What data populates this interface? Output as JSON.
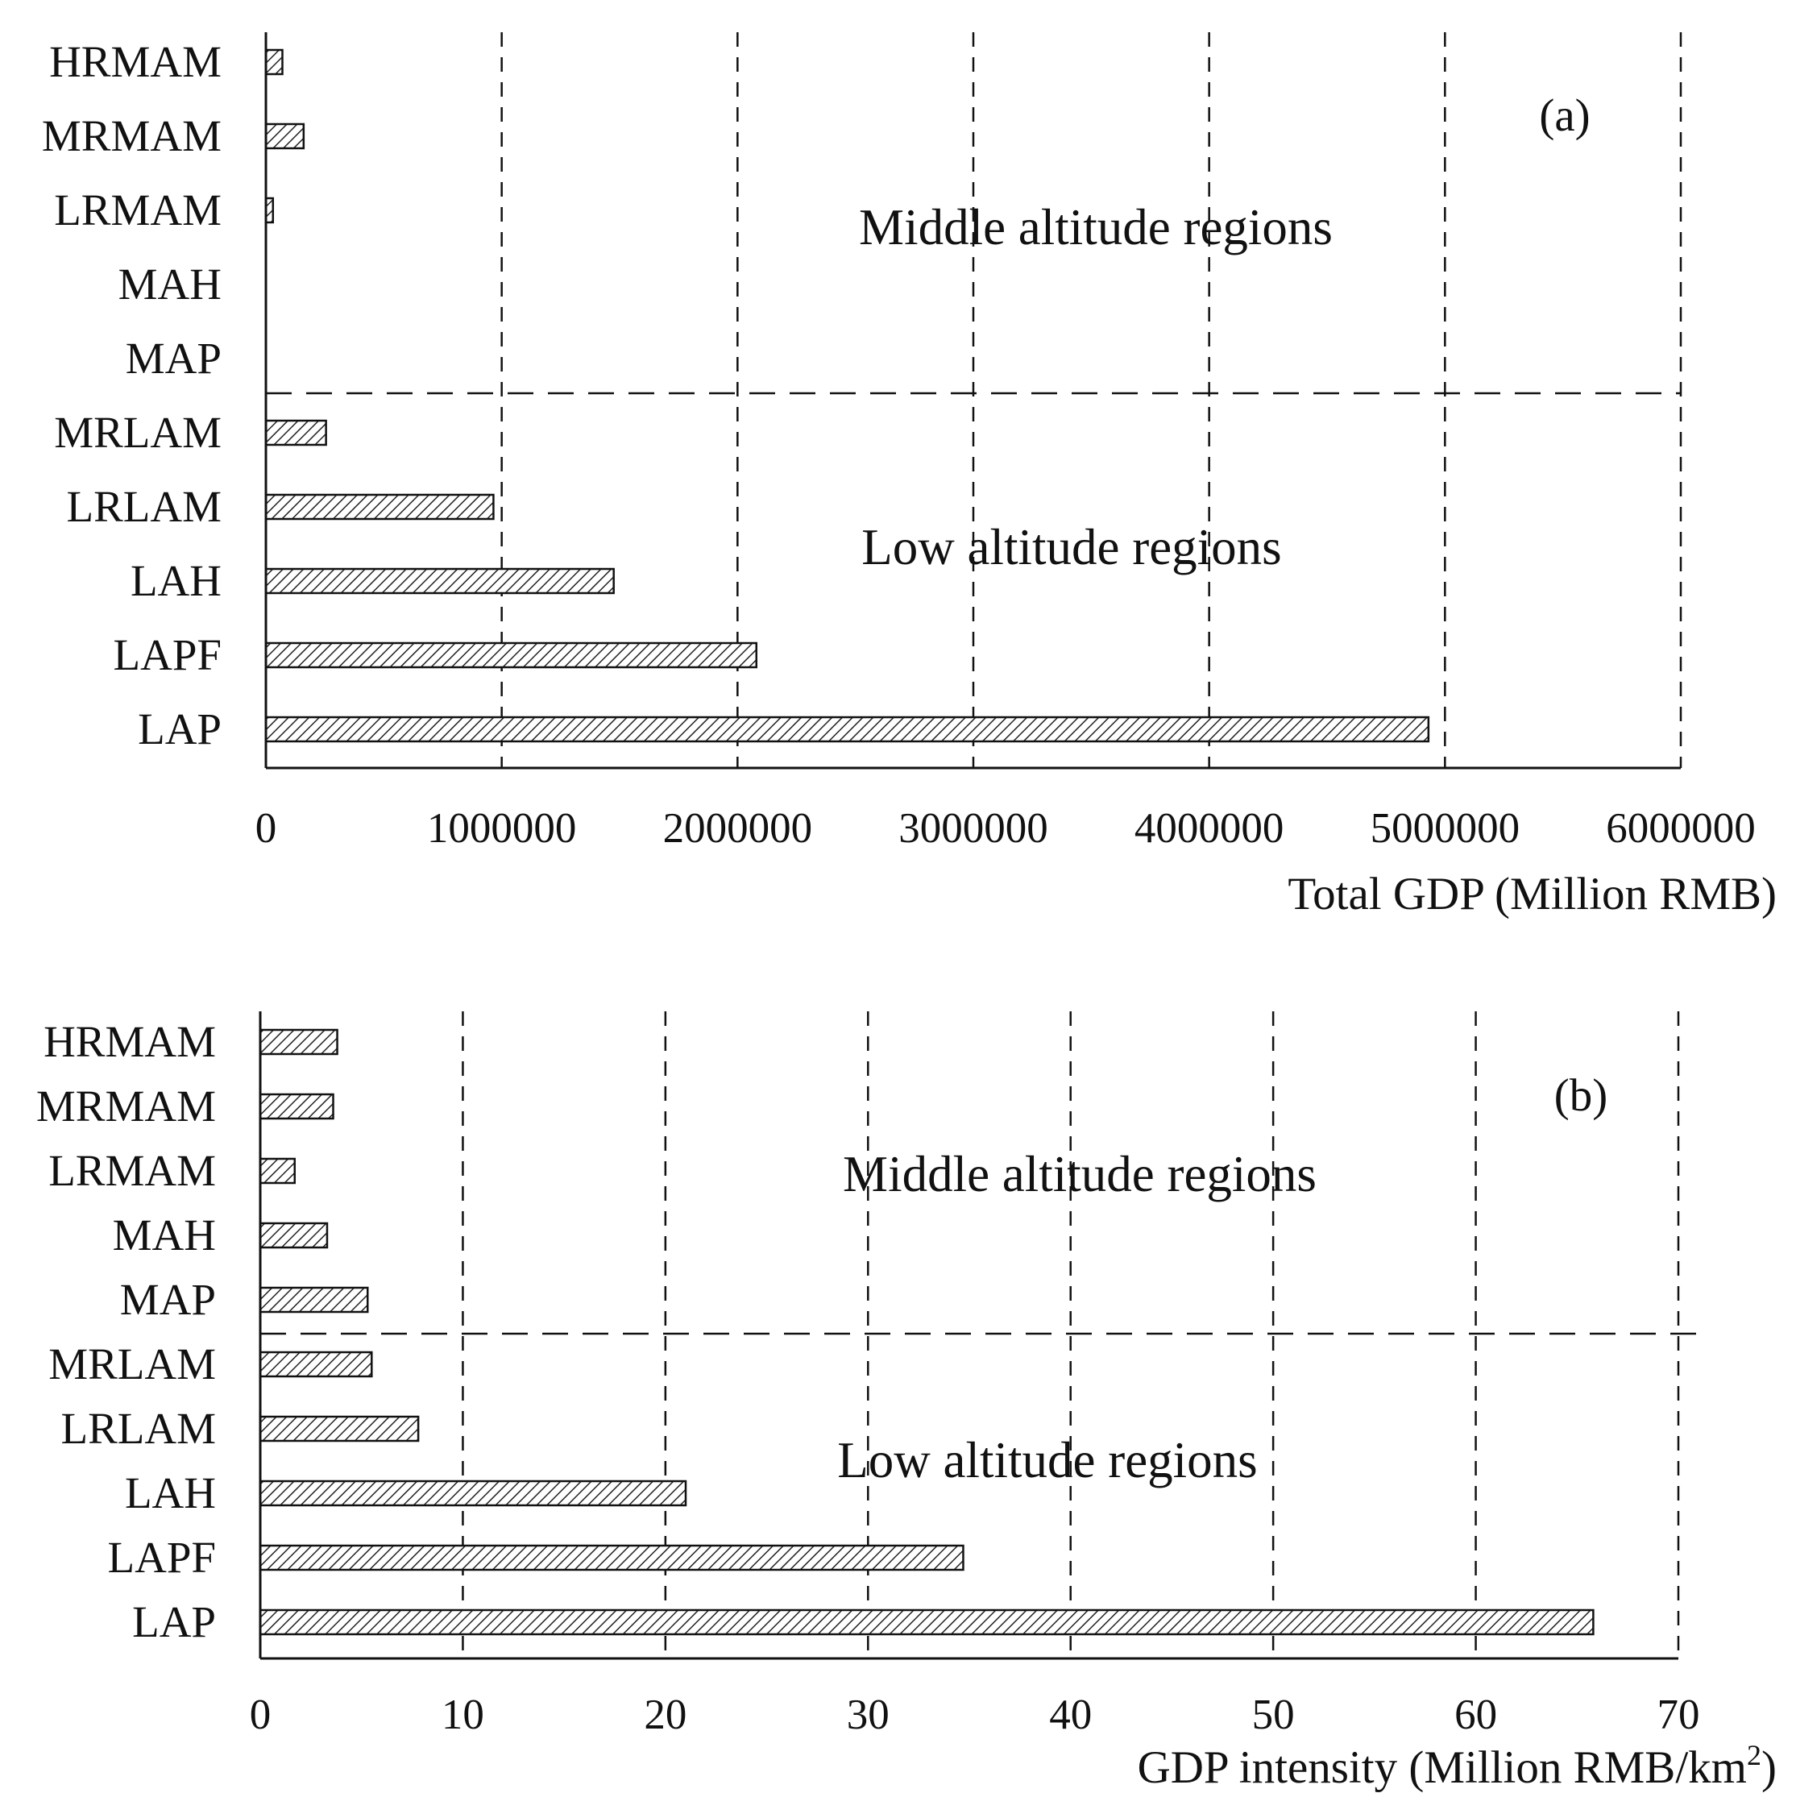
{
  "chart_data": [
    {
      "type": "bar",
      "orientation": "horizontal",
      "panel_label": "(a)",
      "categories": [
        "HRMAM",
        "MRMAM",
        "LRMAM",
        "MAH",
        "MAP",
        "MRLAM",
        "LRLAM",
        "LAH",
        "LAPF",
        "LAP"
      ],
      "values": [
        70000,
        160000,
        30000,
        0,
        0,
        255000,
        965000,
        1475000,
        2080000,
        4930000
      ],
      "xlabel": "Total GDP (Million RMB)",
      "xlim": [
        0,
        6000000
      ],
      "ticks": [
        "0",
        "1000000",
        "2000000",
        "3000000",
        "4000000",
        "5000000",
        "6000000"
      ],
      "grid": "vertical dashed",
      "region_labels": {
        "upper": "Middle altitude regions",
        "lower": "Low altitude regions"
      }
    },
    {
      "type": "bar",
      "orientation": "horizontal",
      "panel_label": "(b)",
      "categories": [
        "HRMAM",
        "MRMAM",
        "LRMAM",
        "MAH",
        "MAP",
        "MRLAM",
        "LRLAM",
        "LAH",
        "LAPF",
        "LAP"
      ],
      "values": [
        3.8,
        3.6,
        1.7,
        3.3,
        5.3,
        5.5,
        7.8,
        21.0,
        34.7,
        65.8
      ],
      "xlabel": "GDP intensity (Million RMB/km",
      "xlabel_sup": "2",
      "xlabel_close": ")",
      "xlim": [
        0,
        70
      ],
      "ticks": [
        "0",
        "10",
        "20",
        "30",
        "40",
        "50",
        "60",
        "70"
      ],
      "grid": "vertical dashed",
      "region_labels": {
        "upper": "Middle altitude regions",
        "lower": "Low altitude regions"
      }
    }
  ]
}
